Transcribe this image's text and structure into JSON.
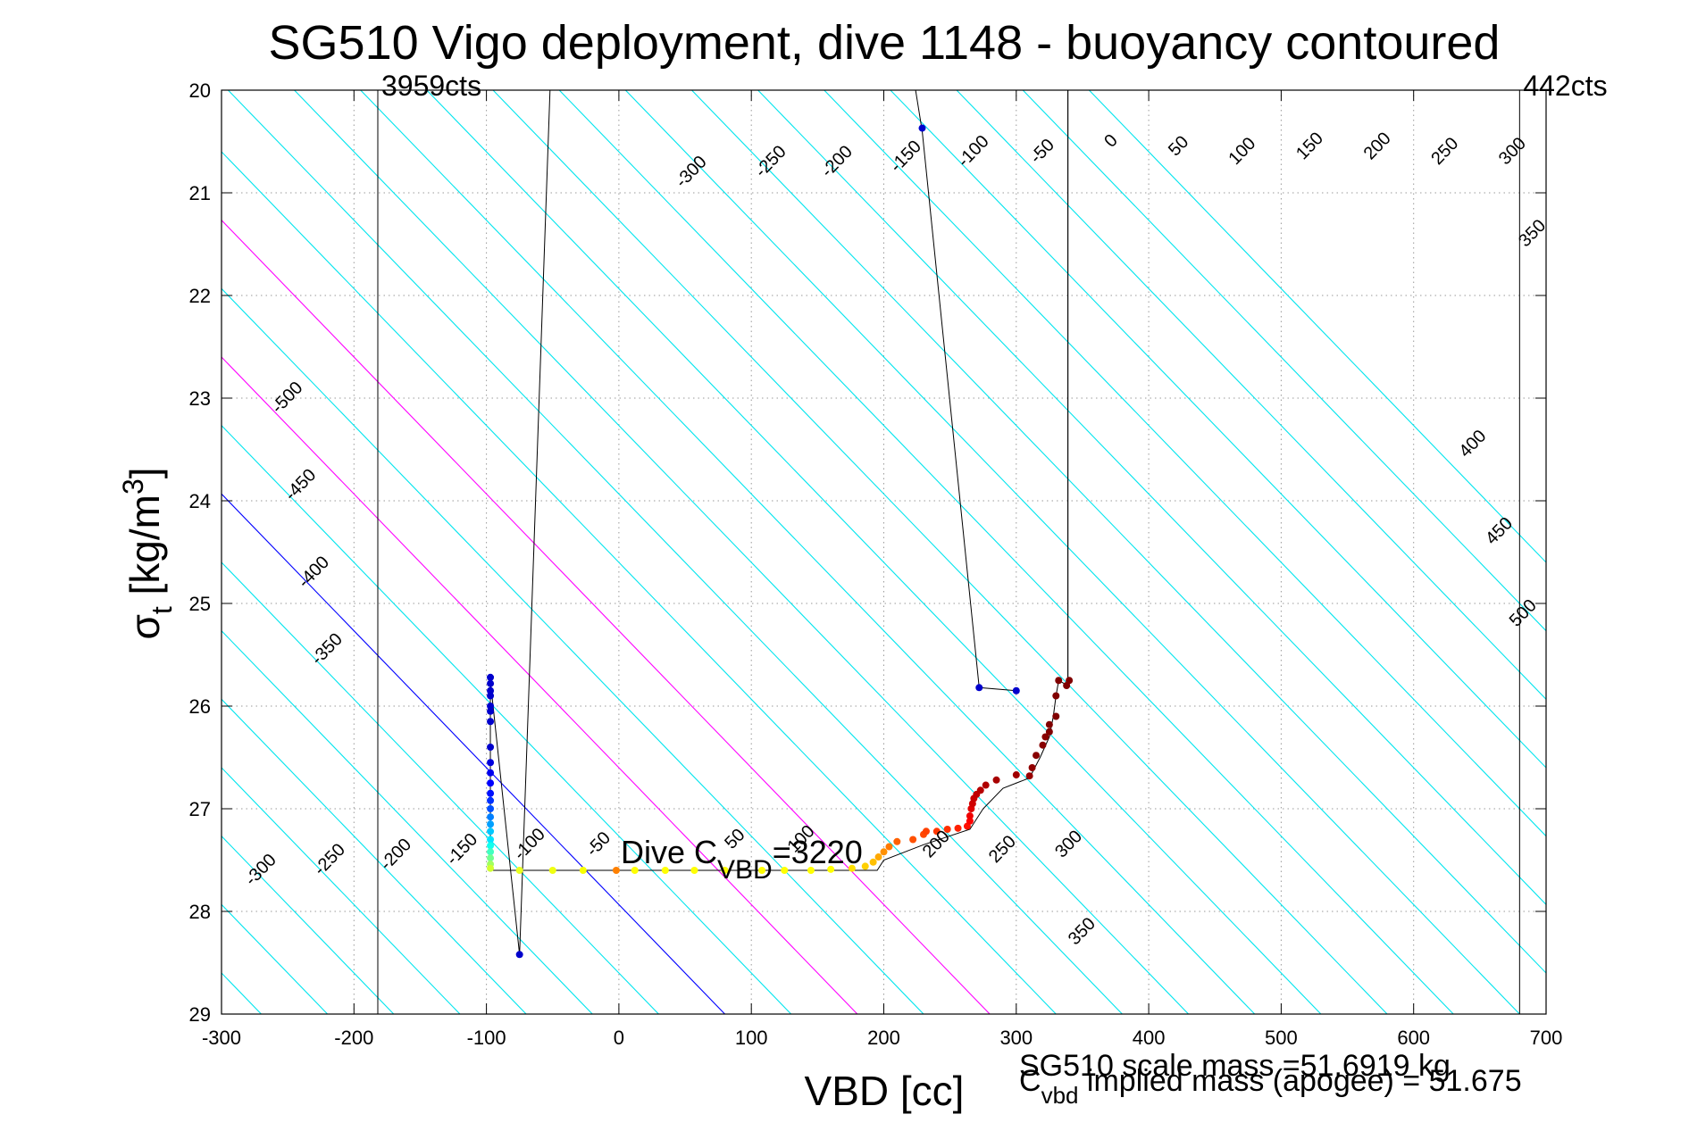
{
  "chart_data": {
    "type": "scatter",
    "title": "SG510 Vigo deployment, dive 1148 - buoyancy contoured",
    "xlabel": "VBD [cc]",
    "ylabel_main": "σ",
    "ylabel_sub": "t",
    "ylabel_unit": " [kg/m",
    "ylabel_sup": "3",
    "ylabel_close": "]",
    "xlim": [
      -300,
      700
    ],
    "ylim": [
      20,
      29
    ],
    "y_reversed": true,
    "grid": "dotted",
    "x_ticks": [
      "-300",
      "-200",
      "-100",
      "0",
      "100",
      "200",
      "300",
      "400",
      "500",
      "600",
      "700"
    ],
    "x_tick_values": [
      -300,
      -200,
      -100,
      0,
      100,
      200,
      300,
      400,
      500,
      600,
      700
    ],
    "y_ticks": [
      "20",
      "21",
      "22",
      "23",
      "24",
      "25",
      "26",
      "27",
      "28",
      "29"
    ],
    "y_tick_values": [
      20,
      21,
      22,
      23,
      24,
      25,
      26,
      27,
      28,
      29
    ],
    "contours": {
      "slope_vbd_per_sigma": 75,
      "base_sigma": 27.6,
      "ref_vbd": -25,
      "levels": [
        -650,
        -600,
        -550,
        -500,
        -450,
        -400,
        -350,
        -300,
        -250,
        -200,
        -150,
        -100,
        -50,
        0,
        50,
        100,
        150,
        200,
        250,
        300,
        350,
        400,
        450,
        500,
        550,
        600,
        650,
        700,
        750,
        800,
        850,
        900,
        950
      ],
      "color": "#00e5ee",
      "zero_color": "#0000ff",
      "highlight_levels": [
        100,
        200
      ],
      "highlight_color": "#ff00ff",
      "labels": [
        {
          "text": "-300",
          "level": -300,
          "vbd": 55,
          "sigma": 20.8
        },
        {
          "text": "-250",
          "level": -250,
          "vbd": 115,
          "sigma": 20.7
        },
        {
          "text": "-200",
          "level": -200,
          "vbd": 165,
          "sigma": 20.7
        },
        {
          "text": "-150",
          "level": -150,
          "vbd": 217,
          "sigma": 20.65
        },
        {
          "text": "-100",
          "level": -100,
          "vbd": 268,
          "sigma": 20.6
        },
        {
          "text": "-50",
          "level": -50,
          "vbd": 320,
          "sigma": 20.6
        },
        {
          "text": "0",
          "level": 0,
          "vbd": 372,
          "sigma": 20.5
        },
        {
          "text": "50",
          "level": 50,
          "vbd": 423,
          "sigma": 20.55
        },
        {
          "text": "100",
          "level": 100,
          "vbd": 471,
          "sigma": 20.6
        },
        {
          "text": "150",
          "level": 150,
          "vbd": 522,
          "sigma": 20.55
        },
        {
          "text": "200",
          "level": 200,
          "vbd": 573,
          "sigma": 20.55
        },
        {
          "text": "250",
          "level": 250,
          "vbd": 624,
          "sigma": 20.6
        },
        {
          "text": "300",
          "level": 300,
          "vbd": 675,
          "sigma": 20.6
        },
        {
          "text": "350",
          "level": 350,
          "vbd": 690,
          "sigma": 21.4
        },
        {
          "text": "400",
          "level": 400,
          "vbd": 645,
          "sigma": 23.45
        },
        {
          "text": "450",
          "level": 450,
          "vbd": 665,
          "sigma": 24.3
        },
        {
          "text": "500",
          "level": 500,
          "vbd": 683,
          "sigma": 25.1
        },
        {
          "text": "-500",
          "level": -500,
          "vbd": -250,
          "sigma": 23.0
        },
        {
          "text": "-450",
          "level": -450,
          "vbd": -240,
          "sigma": 23.85
        },
        {
          "text": "-400",
          "level": -400,
          "vbd": -230,
          "sigma": 24.7
        },
        {
          "text": "-350",
          "level": -350,
          "vbd": -220,
          "sigma": 25.45
        },
        {
          "text": "-300",
          "level": -300,
          "vbd": -270,
          "sigma": 27.6
        },
        {
          "text": "-250",
          "level": -250,
          "vbd": -218,
          "sigma": 27.5
        },
        {
          "text": "-200",
          "level": -200,
          "vbd": -168,
          "sigma": 27.45
        },
        {
          "text": "-150",
          "level": -150,
          "vbd": -118,
          "sigma": 27.4
        },
        {
          "text": "-100",
          "level": -100,
          "vbd": -67,
          "sigma": 27.35
        },
        {
          "text": "-50",
          "level": -50,
          "vbd": -15,
          "sigma": 27.35
        },
        {
          "text": "50",
          "level": 50,
          "vbd": 88,
          "sigma": 27.3
        },
        {
          "text": "100",
          "level": 100,
          "vbd": 138,
          "sigma": 27.3
        },
        {
          "text": "200",
          "level": 200,
          "vbd": 240,
          "sigma": 27.35
        },
        {
          "text": "250",
          "level": 250,
          "vbd": 290,
          "sigma": 27.4
        },
        {
          "text": "300",
          "level": 300,
          "vbd": 340,
          "sigma": 27.35
        },
        {
          "text": "350",
          "level": 350,
          "vbd": 350,
          "sigma": 28.2
        }
      ]
    },
    "vertical_lines": [
      {
        "vbd": -182,
        "color": "#000000"
      },
      {
        "vbd": 339,
        "color": "#000000",
        "sigma_from": 20,
        "sigma_to": 25.8
      },
      {
        "vbd": 680,
        "color": "#000000"
      }
    ],
    "vertical_labels": [
      {
        "text": "3959cts",
        "vbd": -182,
        "sigma": 20
      },
      {
        "text": "442cts",
        "vbd": 680,
        "sigma": 20
      }
    ],
    "profile_line": {
      "color": "#000000",
      "points": [
        [
          -52,
          20
        ],
        [
          -75,
          28.42
        ],
        [
          -97,
          25.75
        ],
        [
          -97,
          27.6
        ],
        [
          195,
          27.6
        ],
        [
          200,
          27.5
        ],
        [
          230,
          27.35
        ],
        [
          265,
          27.2
        ],
        [
          275,
          27.0
        ],
        [
          290,
          26.8
        ],
        [
          310,
          26.7
        ],
        [
          318,
          26.5
        ],
        [
          325,
          26.3
        ],
        [
          328,
          26.1
        ],
        [
          330,
          25.9
        ],
        [
          332,
          25.75
        ],
        [
          339,
          25.8
        ],
        [
          339,
          20
        ],
        [
          224,
          20
        ],
        [
          229,
          20.4
        ],
        [
          272,
          25.82
        ],
        [
          300,
          25.85
        ]
      ]
    },
    "points": [
      {
        "vbd": 229,
        "sigma": 20.37,
        "color": "#0000cc"
      },
      {
        "vbd": 272,
        "sigma": 25.82,
        "color": "#0000cc"
      },
      {
        "vbd": 300,
        "sigma": 25.85,
        "color": "#0000cc"
      },
      {
        "vbd": -75,
        "sigma": 28.42,
        "color": "#0000cc"
      },
      {
        "vbd": -97,
        "sigma": 25.72,
        "color": "#0000cc"
      },
      {
        "vbd": -97,
        "sigma": 25.78,
        "color": "#0000cc"
      },
      {
        "vbd": -97,
        "sigma": 25.85,
        "color": "#0000cc"
      },
      {
        "vbd": -97,
        "sigma": 25.9,
        "color": "#0000cc"
      },
      {
        "vbd": -97,
        "sigma": 26.0,
        "color": "#0000cc"
      },
      {
        "vbd": -97,
        "sigma": 26.05,
        "color": "#0000cc"
      },
      {
        "vbd": -97,
        "sigma": 26.15,
        "color": "#0000cc"
      },
      {
        "vbd": -97,
        "sigma": 26.4,
        "color": "#0000cc"
      },
      {
        "vbd": -97,
        "sigma": 26.55,
        "color": "#0000dd"
      },
      {
        "vbd": -97,
        "sigma": 26.65,
        "color": "#0000ee"
      },
      {
        "vbd": -97,
        "sigma": 26.75,
        "color": "#0000ff"
      },
      {
        "vbd": -97,
        "sigma": 26.85,
        "color": "#0010ff"
      },
      {
        "vbd": -97,
        "sigma": 26.92,
        "color": "#0030ff"
      },
      {
        "vbd": -97,
        "sigma": 27.0,
        "color": "#0050ff"
      },
      {
        "vbd": -97,
        "sigma": 27.08,
        "color": "#0080ff"
      },
      {
        "vbd": -97,
        "sigma": 27.15,
        "color": "#00a0ff"
      },
      {
        "vbd": -97,
        "sigma": 27.22,
        "color": "#00c8ff"
      },
      {
        "vbd": -97,
        "sigma": 27.3,
        "color": "#00e5ff"
      },
      {
        "vbd": -97,
        "sigma": 27.36,
        "color": "#10ffee"
      },
      {
        "vbd": -97,
        "sigma": 27.42,
        "color": "#40ffc0"
      },
      {
        "vbd": -97,
        "sigma": 27.48,
        "color": "#70ff90"
      },
      {
        "vbd": -97,
        "sigma": 27.54,
        "color": "#a0ff60"
      },
      {
        "vbd": -97,
        "sigma": 27.58,
        "color": "#d0ff30"
      },
      {
        "vbd": -75,
        "sigma": 27.6,
        "color": "#e8ff20"
      },
      {
        "vbd": -50,
        "sigma": 27.6,
        "color": "#f0ff10"
      },
      {
        "vbd": -27,
        "sigma": 27.6,
        "color": "#f8ff00"
      },
      {
        "vbd": -2,
        "sigma": 27.6,
        "color": "#ff8000"
      },
      {
        "vbd": 12,
        "sigma": 27.6,
        "color": "#ffff00"
      },
      {
        "vbd": 35,
        "sigma": 27.6,
        "color": "#ffff00"
      },
      {
        "vbd": 57,
        "sigma": 27.6,
        "color": "#ffff00"
      },
      {
        "vbd": 80,
        "sigma": 27.6,
        "color": "#ffff00"
      },
      {
        "vbd": 108,
        "sigma": 27.6,
        "color": "#ffff00"
      },
      {
        "vbd": 125,
        "sigma": 27.6,
        "color": "#ffff00"
      },
      {
        "vbd": 145,
        "sigma": 27.6,
        "color": "#ffff00"
      },
      {
        "vbd": 160,
        "sigma": 27.59,
        "color": "#ffff00"
      },
      {
        "vbd": 176,
        "sigma": 27.58,
        "color": "#ffe000"
      },
      {
        "vbd": 186,
        "sigma": 27.56,
        "color": "#ffd000"
      },
      {
        "vbd": 192,
        "sigma": 27.52,
        "color": "#ffc000"
      },
      {
        "vbd": 196,
        "sigma": 27.47,
        "color": "#ffa800"
      },
      {
        "vbd": 200,
        "sigma": 27.42,
        "color": "#ff9000"
      },
      {
        "vbd": 204,
        "sigma": 27.37,
        "color": "#ff7800"
      },
      {
        "vbd": 210,
        "sigma": 27.32,
        "color": "#ff6000"
      },
      {
        "vbd": 222,
        "sigma": 27.3,
        "color": "#ff5000"
      },
      {
        "vbd": 230,
        "sigma": 27.25,
        "color": "#ff4800"
      },
      {
        "vbd": 232,
        "sigma": 27.22,
        "color": "#ff4000"
      },
      {
        "vbd": 240,
        "sigma": 27.22,
        "color": "#ff3800"
      },
      {
        "vbd": 248,
        "sigma": 27.2,
        "color": "#ff3000"
      },
      {
        "vbd": 256,
        "sigma": 27.19,
        "color": "#ff2000"
      },
      {
        "vbd": 263,
        "sigma": 27.17,
        "color": "#ff1000"
      },
      {
        "vbd": 265,
        "sigma": 27.12,
        "color": "#ff0000"
      },
      {
        "vbd": 265,
        "sigma": 27.07,
        "color": "#f00000"
      },
      {
        "vbd": 266,
        "sigma": 27.0,
        "color": "#e00000"
      },
      {
        "vbd": 267,
        "sigma": 26.95,
        "color": "#d00000"
      },
      {
        "vbd": 268,
        "sigma": 26.9,
        "color": "#c80000"
      },
      {
        "vbd": 270,
        "sigma": 26.86,
        "color": "#c00000"
      },
      {
        "vbd": 273,
        "sigma": 26.82,
        "color": "#b80000"
      },
      {
        "vbd": 277,
        "sigma": 26.77,
        "color": "#b00000"
      },
      {
        "vbd": 285,
        "sigma": 26.72,
        "color": "#a80000"
      },
      {
        "vbd": 300,
        "sigma": 26.67,
        "color": "#a00000"
      },
      {
        "vbd": 310,
        "sigma": 26.68,
        "color": "#980000"
      },
      {
        "vbd": 312,
        "sigma": 26.6,
        "color": "#900000"
      },
      {
        "vbd": 315,
        "sigma": 26.48,
        "color": "#880000"
      },
      {
        "vbd": 320,
        "sigma": 26.38,
        "color": "#880000"
      },
      {
        "vbd": 322,
        "sigma": 26.3,
        "color": "#880000"
      },
      {
        "vbd": 325,
        "sigma": 26.25,
        "color": "#800000"
      },
      {
        "vbd": 325,
        "sigma": 26.18,
        "color": "#800000"
      },
      {
        "vbd": 330,
        "sigma": 26.1,
        "color": "#800000"
      },
      {
        "vbd": 330,
        "sigma": 25.9,
        "color": "#800000"
      },
      {
        "vbd": 332,
        "sigma": 25.75,
        "color": "#800000"
      },
      {
        "vbd": 338,
        "sigma": 25.8,
        "color": "#800000"
      },
      {
        "vbd": 340,
        "sigma": 25.75,
        "color": "#800000"
      }
    ],
    "annotations": {
      "dive_c_prefix": "Dive C",
      "dive_c_sub": "VBD",
      "dive_c_value": "=3220",
      "scale_mass": "SG510 scale mass =51.6919 kg",
      "implied_prefix": "C",
      "implied_sub": "vbd",
      "implied_text": " implied mass (apogee) = 51.675"
    }
  }
}
